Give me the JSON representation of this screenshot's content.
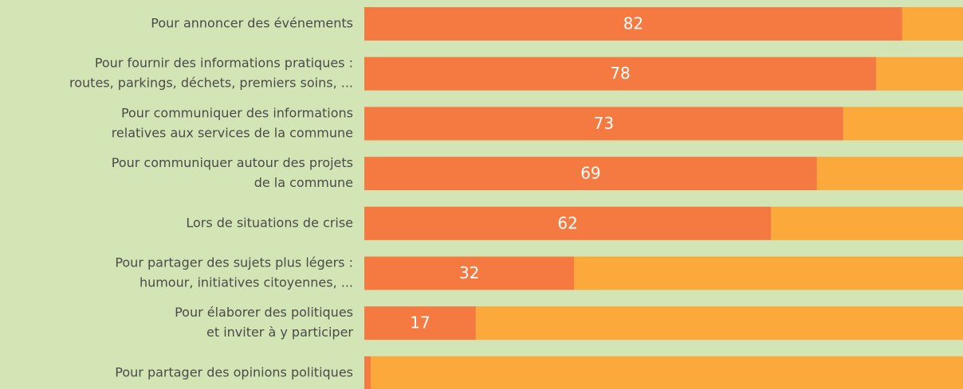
{
  "chart_data": {
    "type": "stacked-barh",
    "categories": [
      [
        "Pour annoncer des événements"
      ],
      [
        "Pour fournir des informations pratiques :",
        "routes, parkings, déchets, premiers soins, ..."
      ],
      [
        "Pour communiquer des informations",
        "relatives aux services de la commune"
      ],
      [
        "Pour communiquer autour des projets",
        "de la commune"
      ],
      [
        "Lors de situations de crise"
      ],
      [
        "Pour partager des sujets plus légers :",
        "humour, initiatives citoyennes, ..."
      ],
      [
        "Pour élaborer des politiques",
        "et inviter à y participer"
      ],
      [
        "Pour partager des opinions politiques"
      ]
    ],
    "series": [
      {
        "color": "#f47a42",
        "values": [
          82,
          78,
          73,
          69,
          62,
          32,
          17,
          1
        ]
      },
      {
        "color": "#fba93a",
        "values": [
          18,
          22,
          27,
          31,
          38,
          68,
          83,
          99
        ]
      }
    ],
    "xlim": [
      0,
      100
    ]
  }
}
